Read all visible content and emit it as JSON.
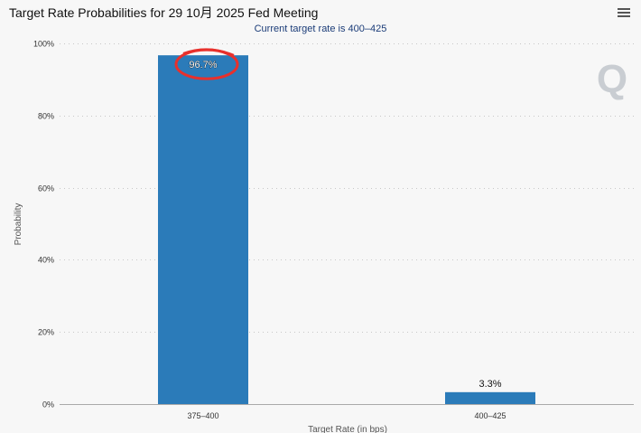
{
  "header": {
    "title": "Target Rate Probabilities for 29 10月 2025 Fed Meeting",
    "subtitle": "Current target rate is 400–425",
    "menu_icon": "hamburger-menu-icon"
  },
  "watermark": {
    "text": "Q"
  },
  "colors": {
    "bar": "#2b7bb9",
    "annotation": "#e8302c",
    "grid": "#c8c8c8"
  },
  "chart_data": {
    "type": "bar",
    "categories": [
      "375–400",
      "400–425"
    ],
    "values": [
      96.7,
      3.3
    ],
    "data_labels": [
      "96.7%",
      "3.3%"
    ],
    "xlabel": "Target Rate (in bps)",
    "ylabel": "Probability",
    "ylim": [
      0,
      100
    ],
    "yticks": [
      "0%",
      "20%",
      "40%",
      "60%",
      "80%",
      "100%"
    ],
    "grid": true,
    "annotation": "red hand-drawn circle around the 96.7% label"
  }
}
